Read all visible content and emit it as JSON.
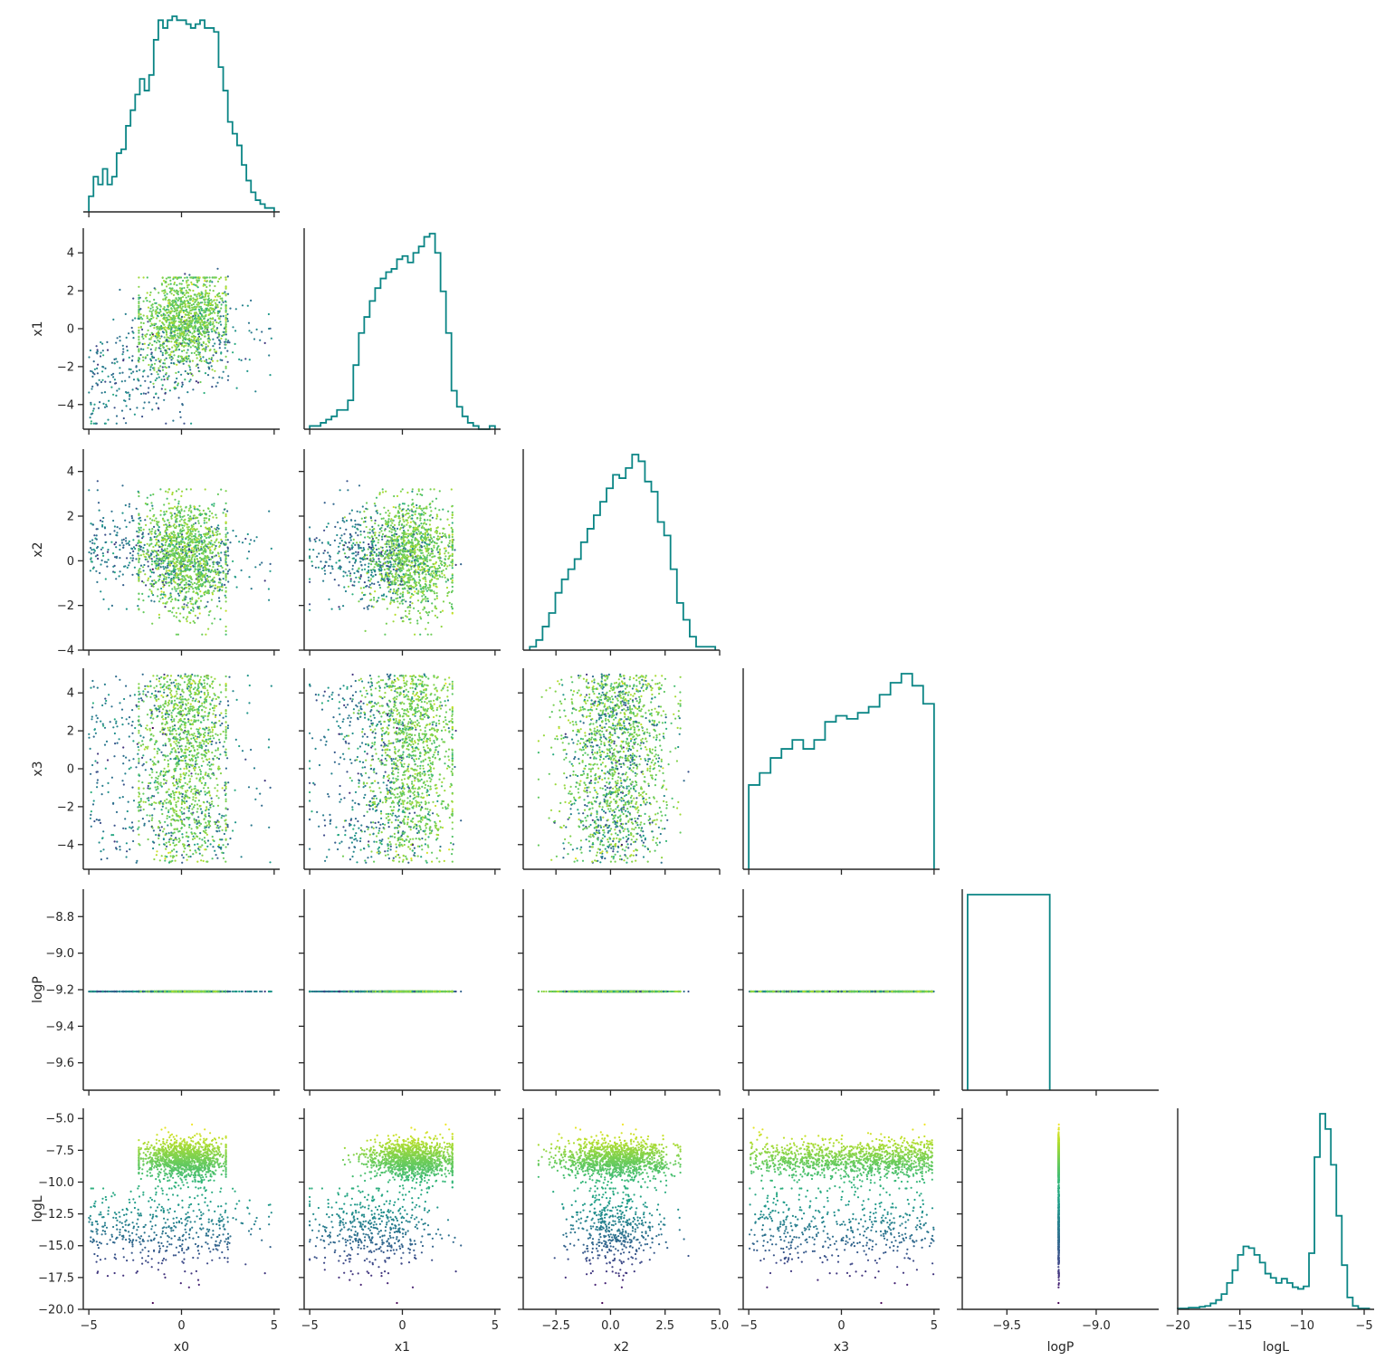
{
  "chart_data": {
    "type": "pairplot-corner",
    "variables": [
      "x0",
      "x1",
      "x2",
      "x3",
      "logP",
      "logL"
    ],
    "axes_labels": {
      "bottom": [
        "x0",
        "x1",
        "x2",
        "x3",
        "logP",
        "logL"
      ],
      "left": [
        "x1",
        "x2",
        "x3",
        "logP",
        "logL"
      ]
    },
    "tick_labels": {
      "x0": [
        "−5",
        "0",
        "5"
      ],
      "x1": [
        "−5",
        "0",
        "5"
      ],
      "x2": [
        "−2.5",
        "0.0",
        "2.5",
        "5.0"
      ],
      "x3": [
        "−5",
        "0",
        "5"
      ],
      "logP": [
        "−9.5",
        "−9.0"
      ],
      "logL": [
        "−20",
        "−15",
        "−10",
        "−5"
      ],
      "y_x1": [
        "−4",
        "−2",
        "0",
        "2",
        "4"
      ],
      "y_x2": [
        "−4",
        "−2",
        "0",
        "2",
        "4"
      ],
      "y_x3": [
        "−4",
        "−2",
        "0",
        "2",
        "4"
      ],
      "y_logP": [
        "−9.6",
        "−9.4",
        "−9.2",
        "−9.0",
        "−8.8"
      ],
      "y_logL": [
        "−20.0",
        "−17.5",
        "−15.0",
        "−12.5",
        "−10.0",
        "−7.5",
        "−5.0"
      ]
    },
    "ticks": {
      "x0": [
        -5,
        0,
        5
      ],
      "x1": [
        -5,
        0,
        5
      ],
      "x2": [
        -2.5,
        0,
        2.5,
        5
      ],
      "x3": [
        -5,
        0,
        5
      ],
      "logP": [
        -9.5,
        -9.0
      ],
      "logL": [
        -20,
        -15,
        -10,
        -5
      ],
      "y_x1": [
        -4,
        -2,
        0,
        2,
        4
      ],
      "y_x2": [
        -4,
        -2,
        0,
        2,
        4
      ],
      "y_x3": [
        -4,
        -2,
        0,
        2,
        4
      ],
      "y_logP": [
        -9.6,
        -9.4,
        -9.2,
        -9.0,
        -8.8
      ],
      "y_logL": [
        -20,
        -17.5,
        -15,
        -12.5,
        -10,
        -7.5,
        -5
      ]
    },
    "ranges": {
      "x0": [
        -5.3,
        5.3
      ],
      "x1": [
        -5.3,
        5.3
      ],
      "x2": [
        -4.0,
        5.0
      ],
      "x3": [
        -5.3,
        5.3
      ],
      "logP": [
        -9.75,
        -8.65
      ],
      "logL": [
        -20.0,
        -4.2
      ]
    },
    "logP_value": -9.21,
    "histograms": {
      "x0": {
        "range": [
          -5.0,
          5.0
        ],
        "counts": [
          4,
          9,
          7,
          11,
          7,
          9,
          15,
          16,
          22,
          26,
          30,
          34,
          31,
          35,
          44,
          49,
          47,
          49,
          50,
          49,
          49,
          48,
          47,
          48,
          49,
          47,
          47,
          46,
          37,
          31,
          23,
          20,
          17,
          12,
          8,
          5,
          3,
          2,
          1,
          1
        ]
      },
      "x1": {
        "range": [
          -5.0,
          5.0
        ],
        "counts": [
          1,
          1,
          2,
          3,
          4,
          6,
          6,
          9,
          20,
          30,
          35,
          40,
          44,
          47,
          49,
          50,
          53,
          54,
          52,
          55,
          57,
          60,
          61,
          55,
          43,
          30,
          12,
          7,
          4,
          2,
          1,
          0,
          0,
          1
        ]
      },
      "x2": {
        "range": [
          -3.7,
          4.8
        ],
        "counts": [
          1,
          3,
          7,
          11,
          17,
          21,
          24,
          27,
          32,
          36,
          40,
          44,
          48,
          52,
          51,
          54,
          58,
          56,
          50,
          47,
          38,
          34,
          24,
          14,
          9,
          4,
          1,
          1,
          1
        ]
      },
      "x3": {
        "range": [
          -5.0,
          5.0
        ],
        "counts": [
          28,
          32,
          37,
          40,
          43,
          40,
          43,
          49,
          51,
          50,
          52,
          54,
          58,
          62,
          65,
          61,
          55
        ]
      },
      "logP": {
        "range": [
          -9.72,
          -9.26
        ],
        "counts": [
          1
        ]
      },
      "logL": {
        "range": [
          -20.0,
          -4.6
        ],
        "counts": [
          1,
          1,
          2,
          2,
          3,
          4,
          7,
          11,
          18,
          31,
          46,
          64,
          74,
          72,
          64,
          55,
          42,
          37,
          31,
          36,
          31,
          26,
          24,
          27,
          66,
          179,
          230,
          212,
          170,
          110,
          52,
          14,
          4,
          1,
          1
        ]
      }
    },
    "colormap": "viridis",
    "hist_color": "#0a8585",
    "spine_color": "#262626"
  }
}
